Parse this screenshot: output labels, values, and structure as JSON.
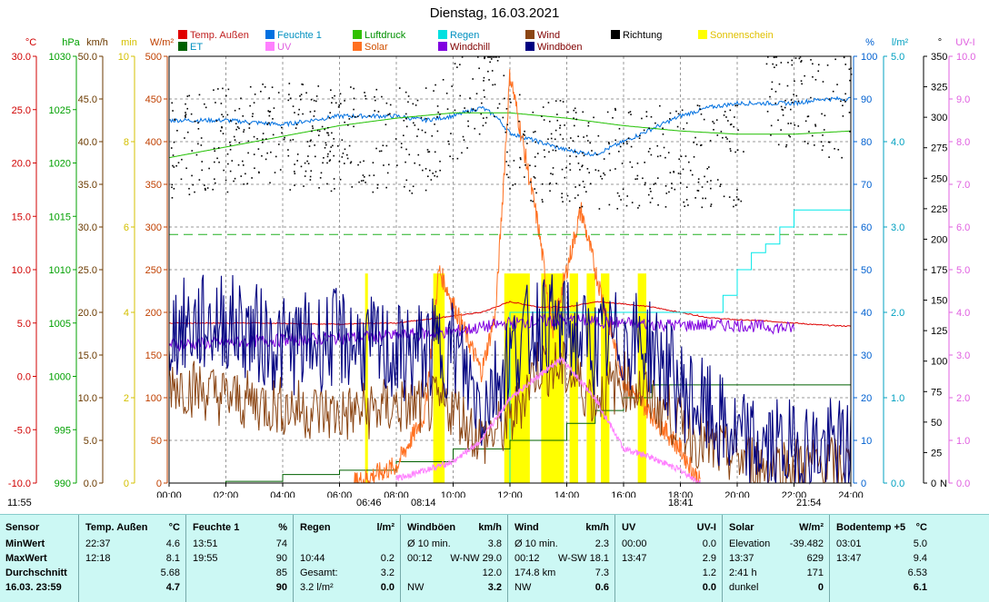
{
  "chart_data": {
    "type": "line",
    "title": "Dienstag, 16.03.2021",
    "x_ticks": [
      "00:00",
      "02:00",
      "04:00",
      "06:00",
      "08:00",
      "10:00",
      "12:00",
      "14:00",
      "16:00",
      "18:00",
      "20:00",
      "22:00",
      "24:00"
    ],
    "axes": [
      {
        "unit": "°C",
        "color": "#d00000",
        "ticks": [
          "30.0",
          "25.0",
          "20.0",
          "15.0",
          "10.0",
          "5.0",
          "0.0",
          "-5.0",
          "-10.0"
        ]
      },
      {
        "unit": "hPa",
        "color": "#00a000",
        "ticks": [
          "1030",
          "1025",
          "1020",
          "1015",
          "1010",
          "1005",
          "1000",
          "995",
          "990"
        ]
      },
      {
        "unit": "km/h",
        "color": "#6b3a00",
        "ticks": [
          "50.0",
          "45.0",
          "40.0",
          "35.0",
          "30.0",
          "25.0",
          "20.0",
          "15.0",
          "10.0",
          "5.0",
          "0.0"
        ]
      },
      {
        "unit": "min",
        "color": "#d4c000",
        "ticks": [
          "10",
          "8",
          "6",
          "4",
          "2",
          "0"
        ]
      },
      {
        "unit": "W/m²",
        "color": "#c04000",
        "ticks": [
          "500",
          "450",
          "400",
          "350",
          "300",
          "250",
          "200",
          "150",
          "100",
          "50",
          "0"
        ]
      },
      {
        "unit": "%",
        "color": "#0060d0",
        "ticks": [
          "100",
          "90",
          "80",
          "70",
          "60",
          "50",
          "40",
          "30",
          "20",
          "10",
          "0"
        ]
      },
      {
        "unit": "l/m²",
        "color": "#00a0c0",
        "ticks": [
          "5.0",
          "4.0",
          "3.0",
          "2.0",
          "1.0",
          "0.0"
        ]
      },
      {
        "unit": "°",
        "color": "#000000",
        "ticks": [
          "350",
          "325",
          "300",
          "275",
          "250",
          "225",
          "200",
          "175",
          "150",
          "125",
          "100",
          "75",
          "50",
          "25",
          "0"
        ],
        "extra": "N"
      },
      {
        "unit": "UV-I",
        "color": "#e060e0",
        "ticks": [
          "10.0",
          "9.0",
          "8.0",
          "7.0",
          "6.0",
          "5.0",
          "4.0",
          "3.0",
          "2.0",
          "1.0",
          "0.0"
        ]
      }
    ],
    "legend": [
      {
        "name": "Temp. Außen",
        "color": "#e00000"
      },
      {
        "name": "Feuchte 1",
        "color": "#0070e0"
      },
      {
        "name": "Luftdruck",
        "color": "#30c000"
      },
      {
        "name": "Regen",
        "color": "#00e0e0"
      },
      {
        "name": "Wind",
        "color": "#8b4513"
      },
      {
        "name": "Richtung",
        "color": "#000000"
      },
      {
        "name": "Sonnenschein",
        "color": "#ffff00"
      },
      {
        "name": "ET",
        "color": "#006000"
      },
      {
        "name": "UV",
        "color": "#ff80ff"
      },
      {
        "name": "Solar",
        "color": "#ff7020"
      },
      {
        "name": "Windchill",
        "color": "#8000e0"
      },
      {
        "name": "Windböen",
        "color": "#000080"
      }
    ],
    "series": [
      {
        "name": "Temp. Außen",
        "axis": "°C",
        "x": [
          0,
          3,
          6,
          8,
          9.5,
          11,
          12,
          13,
          14,
          15,
          16,
          17,
          18,
          19,
          20,
          21,
          22,
          23,
          24
        ],
        "y": [
          5.0,
          5.0,
          4.9,
          5.0,
          5.5,
          6.0,
          7.0,
          6.5,
          6.5,
          7.0,
          6.8,
          6.5,
          6.0,
          5.5,
          5.3,
          5.2,
          5.0,
          4.8,
          4.7
        ]
      },
      {
        "name": "Feuchte 1",
        "axis": "%",
        "x": [
          0,
          2,
          4,
          6,
          8,
          9,
          10,
          11,
          11.5,
          12,
          13,
          14,
          15,
          16,
          17,
          18,
          19,
          20,
          21,
          22,
          23,
          24
        ],
        "y": [
          85,
          85,
          84,
          86,
          86,
          85,
          86,
          88,
          86,
          82,
          80,
          78,
          77,
          80,
          83,
          86,
          88,
          89,
          89,
          89,
          90,
          90
        ]
      },
      {
        "name": "Luftdruck",
        "axis": "hPa",
        "x": [
          0,
          2,
          4,
          6,
          8,
          10,
          12,
          14,
          16,
          18,
          20,
          22,
          24
        ],
        "y": [
          1020.5,
          1021.5,
          1022.5,
          1023.5,
          1024.2,
          1024.7,
          1024.7,
          1024.2,
          1023.5,
          1023.0,
          1022.7,
          1022.7,
          1023.0
        ]
      },
      {
        "name": "Regen",
        "axis": "l/m²",
        "x": [
          0,
          11.5,
          12,
          13,
          14,
          17,
          18,
          19,
          19.5,
          20,
          20.5,
          21,
          21.5,
          22,
          24
        ],
        "y": [
          0,
          0,
          2.0,
          2.0,
          2.0,
          2.0,
          2.0,
          2.0,
          2.2,
          2.5,
          2.7,
          2.8,
          3.0,
          3.2,
          3.2
        ]
      },
      {
        "name": "ET",
        "axis": "l/m²",
        "x": [
          0,
          2,
          4,
          6,
          8,
          10,
          12,
          14,
          15,
          16,
          17,
          24
        ],
        "y": [
          0,
          0.02,
          0.1,
          0.15,
          0.25,
          0.4,
          0.5,
          0.7,
          0.85,
          1.0,
          1.15,
          1.15
        ]
      },
      {
        "name": "Solar",
        "axis": "W/m²",
        "x": [
          6.5,
          8,
          9,
          9.5,
          10,
          11,
          11.5,
          12,
          13,
          13.5,
          14,
          14.5,
          15,
          16,
          17,
          18,
          18.7
        ],
        "y": [
          0,
          20,
          80,
          250,
          210,
          130,
          200,
          480,
          300,
          180,
          250,
          320,
          250,
          120,
          80,
          40,
          0
        ]
      },
      {
        "name": "Windchill",
        "axis": "°C",
        "x": [
          0,
          2,
          4,
          6,
          8,
          10,
          12,
          14,
          16,
          18,
          20,
          22
        ],
        "y": [
          3.0,
          3.2,
          3.4,
          3.6,
          3.8,
          4.2,
          5.0,
          5.3,
          5.0,
          4.8,
          4.8,
          4.5
        ]
      },
      {
        "name": "Wind",
        "axis": "km/h",
        "x": [
          0,
          2,
          4,
          6,
          8,
          10,
          11,
          12,
          13,
          14,
          15,
          16,
          17,
          18,
          19,
          20,
          21,
          22,
          23,
          24
        ],
        "y": [
          12,
          10,
          9,
          8,
          9,
          9,
          5,
          7,
          14,
          13,
          10,
          12,
          10,
          7,
          4,
          3,
          2,
          2,
          2,
          2
        ]
      },
      {
        "name": "Windböen",
        "axis": "km/h",
        "x": [
          0,
          2,
          4,
          6,
          8,
          10,
          11,
          12,
          13,
          14,
          15,
          16,
          17,
          18,
          19,
          20,
          21,
          22,
          23,
          24
        ],
        "y": [
          18,
          19,
          16,
          17,
          15,
          16,
          9,
          15,
          19,
          18,
          16,
          17,
          16,
          11,
          8,
          5,
          4,
          4,
          4,
          4
        ]
      },
      {
        "name": "Richtung",
        "axis": "°",
        "x": [
          0,
          3,
          6,
          9,
          11.5,
          12,
          15,
          18,
          20,
          21,
          22,
          23,
          24
        ],
        "y": [
          280,
          295,
          290,
          290,
          350,
          285,
          275,
          275,
          275,
          330,
          325,
          320,
          320
        ]
      },
      {
        "name": "UV",
        "axis": "UV-I",
        "x": [
          8,
          10,
          11,
          12,
          13.8,
          15,
          16,
          17,
          18,
          18.7
        ],
        "y": [
          0.1,
          0.5,
          1.0,
          2.0,
          2.9,
          2.0,
          0.8,
          0.6,
          0.3,
          0
        ]
      }
    ],
    "sunshine": [
      [
        6.9,
        7.0
      ],
      [
        9.3,
        9.7
      ],
      [
        11.8,
        12.7
      ],
      [
        13.1,
        13.9
      ],
      [
        14.1,
        14.4
      ],
      [
        14.7,
        15.0
      ],
      [
        15.2,
        15.5
      ],
      [
        16.5,
        16.8
      ]
    ],
    "sunrow": {
      "left": "11:55",
      "rise": "06:46",
      "rise2": "08:14",
      "set": "18:41",
      "set2": "21:54"
    }
  },
  "panel": {
    "sensor": {
      "header": "Sensor",
      "rows": [
        "MinWert",
        "MaxWert",
        "Durchschnitt"
      ],
      "footer": "16.03. 23:59"
    },
    "temp": {
      "header": "Temp. Außen",
      "unit": "°C",
      "min": [
        "22:37",
        "4.6"
      ],
      "max": [
        "12:18",
        "8.1"
      ],
      "avg": "5.68",
      "cur": "4.7"
    },
    "feuchte": {
      "header": "Feuchte 1",
      "unit": "%",
      "min": [
        "13:51",
        "74"
      ],
      "max": [
        "19:55",
        "90"
      ],
      "avg": "85",
      "cur": "90"
    },
    "regen": {
      "header": "Regen",
      "unit": "l/m²",
      "r2": [
        "10:44",
        "0.2"
      ],
      "r3": [
        "Gesamt:",
        "3.2"
      ],
      "r4": [
        "3.2 l/m²",
        "0.0"
      ]
    },
    "boeen": {
      "header": "Windböen",
      "unit": "km/h",
      "r1": [
        "Ø 10 min.",
        "3.8"
      ],
      "r2": [
        "00:12",
        "W-NW 29.0"
      ],
      "r3": "12.0",
      "r4": [
        "NW",
        "3.2"
      ]
    },
    "wind": {
      "header": "Wind",
      "unit": "km/h",
      "r1": [
        "Ø 10 min.",
        "2.3"
      ],
      "r2": [
        "00:12",
        "W-SW 18.1"
      ],
      "r3": [
        "174.8 km",
        "7.3"
      ],
      "r4": [
        "NW",
        "0.6"
      ]
    },
    "uv": {
      "header": "UV",
      "unit": "UV-I",
      "r1": [
        "00:00",
        "0.0"
      ],
      "r2": [
        "13:47",
        "2.9"
      ],
      "r3": "1.2",
      "r4": "0.0"
    },
    "solar": {
      "header": "Solar",
      "unit": "W/m²",
      "r1": [
        "Elevation",
        "-39.482"
      ],
      "r2": [
        "13:37",
        "629"
      ],
      "r3": [
        "2:41 h",
        "171"
      ],
      "r4": [
        "dunkel",
        "0"
      ]
    },
    "boden": {
      "header": "Bodentemp +5",
      "unit": "°C",
      "r1": [
        "03:01",
        "5.0"
      ],
      "r2": [
        "13:47",
        "9.4"
      ],
      "r3": "6.53",
      "r4": "6.1"
    }
  }
}
